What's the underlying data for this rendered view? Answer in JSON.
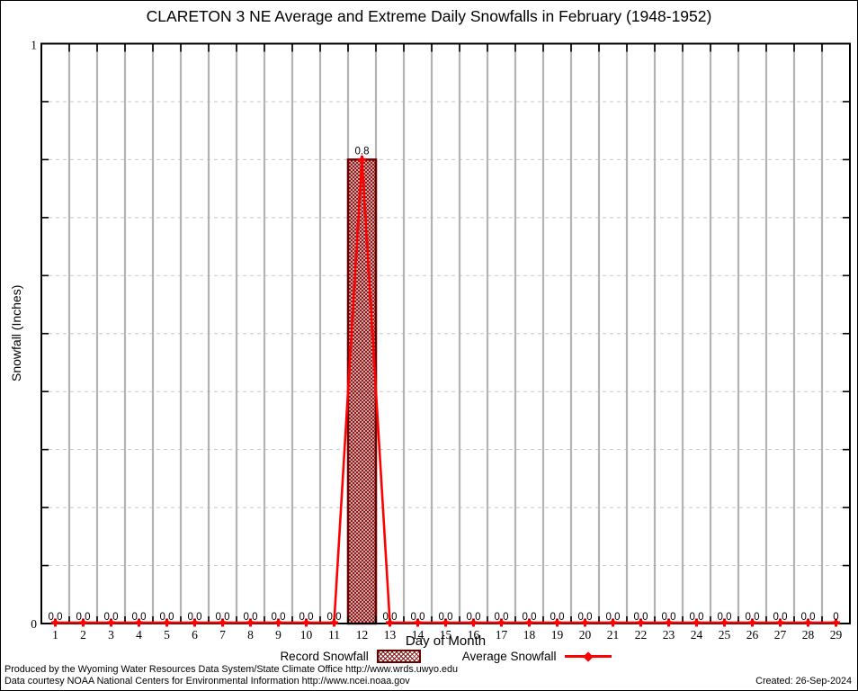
{
  "header": {
    "title": "CLARETON 3 NE Average and Extreme Daily Snowfalls in February (1948-1952)"
  },
  "chart_data": {
    "type": "bar",
    "title": "CLARETON 3 NE Average and Extreme Daily Snowfalls in February (1948-1952)",
    "xlabel": "Day of Month",
    "ylabel": "Snowfall (Inches)",
    "ylim": [
      0,
      1
    ],
    "ytick_interval": 0.1,
    "ytick_labels_shown": [
      "0",
      "1"
    ],
    "grid": {
      "vertical": "solid lines between day cells",
      "horizontal": "dashed lines every 0.1"
    },
    "legend_position": "bottom-center",
    "categories": [
      1,
      2,
      3,
      4,
      5,
      6,
      7,
      8,
      9,
      10,
      11,
      12,
      13,
      14,
      15,
      16,
      17,
      18,
      19,
      20,
      21,
      22,
      23,
      24,
      25,
      26,
      27,
      28,
      29
    ],
    "series": [
      {
        "name": "Record Snowfall",
        "type": "bar",
        "values": [
          0,
          0,
          0,
          0,
          0,
          0,
          0,
          0,
          0,
          0,
          0,
          0.8,
          0,
          0,
          0,
          0,
          0,
          0,
          0,
          0,
          0,
          0,
          0,
          0,
          0,
          0,
          0,
          0,
          0
        ]
      },
      {
        "name": "Average Snowfall",
        "type": "line",
        "values": [
          0,
          0,
          0,
          0,
          0,
          0,
          0,
          0,
          0,
          0,
          0,
          0.8,
          0,
          0,
          0,
          0,
          0,
          0,
          0,
          0,
          0,
          0,
          0,
          0,
          0,
          0,
          0,
          0,
          0
        ]
      }
    ],
    "point_labels": [
      "0.0",
      "0.0",
      "0.0",
      "0.0",
      "0.0",
      "0.0",
      "0.0",
      "0.0",
      "0.0",
      "0.0",
      "0.0",
      "0.8",
      "0.0",
      "0.0",
      "0.0",
      "0.0",
      "0.0",
      "0.0",
      "0.0",
      "0.0",
      "0.0",
      "0.0",
      "0.0",
      "0.0",
      "0.0",
      "0.0",
      "0.0",
      "0.0",
      "0"
    ]
  },
  "legend": {
    "record_label": "Record Snowfall",
    "average_label": "Average Snowfall"
  },
  "footer": {
    "line1": "Produced by the Wyoming Water Resources Data System/State Climate Office http://www.wrds.uwyo.edu",
    "line2": "Data courtesy NOAA National Centers for Environmental Information http://www.ncei.noaa.gov",
    "created": "Created: 26-Sep-2024"
  },
  "colors": {
    "bar_hatch": "#8b1a1a",
    "bar_border": "#6b0000",
    "line": "#ff0000",
    "grid_vertical": "#b3b3b3",
    "grid_horizontal": "#c8c8c8",
    "axis": "#000000",
    "text": "#000000"
  }
}
